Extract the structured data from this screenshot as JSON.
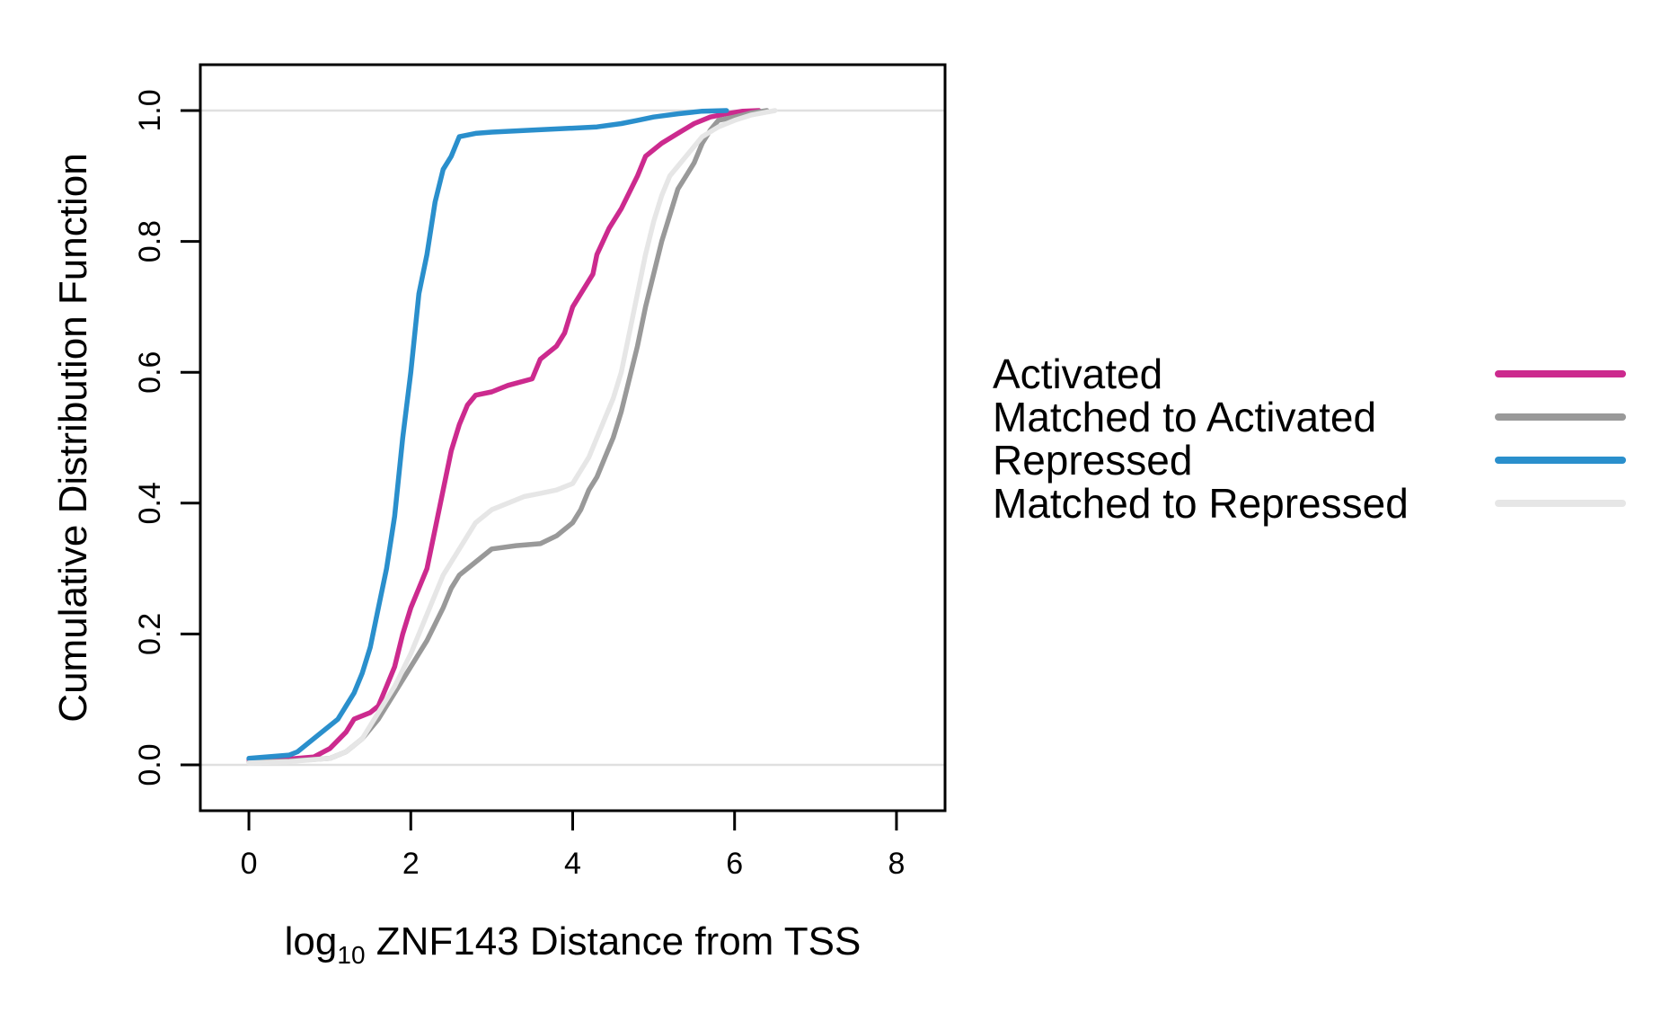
{
  "chart_data": {
    "type": "line",
    "title": "",
    "xlabel": {
      "prefix": "log",
      "subscript": "10",
      "rest": " ZNF143 Distance from TSS"
    },
    "ylabel": "Cumulative Distribution Function",
    "xlim": [
      -0.6,
      8.6
    ],
    "ylim": [
      -0.07,
      1.07
    ],
    "x_ticks": [
      0,
      2,
      4,
      6,
      8
    ],
    "y_ticks": [
      0.0,
      0.2,
      0.4,
      0.6,
      0.8,
      1.0
    ],
    "x_tick_labels": [
      "0",
      "2",
      "4",
      "6",
      "8"
    ],
    "y_tick_labels": [
      "0.0",
      "0.2",
      "0.4",
      "0.6",
      "0.8",
      "1.0"
    ],
    "reference_lines_y": [
      0,
      1
    ],
    "grid": false,
    "legend_position": "right",
    "series": [
      {
        "name": "Activated",
        "color": "#CC2A8E",
        "points": [
          [
            0,
            0.008
          ],
          [
            0.5,
            0.009
          ],
          [
            0.8,
            0.012
          ],
          [
            1.0,
            0.025
          ],
          [
            1.2,
            0.05
          ],
          [
            1.3,
            0.07
          ],
          [
            1.5,
            0.08
          ],
          [
            1.6,
            0.09
          ],
          [
            1.7,
            0.12
          ],
          [
            1.8,
            0.15
          ],
          [
            1.9,
            0.2
          ],
          [
            2.0,
            0.24
          ],
          [
            2.1,
            0.27
          ],
          [
            2.2,
            0.3
          ],
          [
            2.3,
            0.36
          ],
          [
            2.4,
            0.42
          ],
          [
            2.5,
            0.48
          ],
          [
            2.6,
            0.52
          ],
          [
            2.7,
            0.55
          ],
          [
            2.8,
            0.565
          ],
          [
            3.0,
            0.57
          ],
          [
            3.2,
            0.58
          ],
          [
            3.5,
            0.59
          ],
          [
            3.6,
            0.62
          ],
          [
            3.8,
            0.64
          ],
          [
            3.9,
            0.66
          ],
          [
            4.0,
            0.7
          ],
          [
            4.1,
            0.72
          ],
          [
            4.25,
            0.75
          ],
          [
            4.3,
            0.78
          ],
          [
            4.45,
            0.82
          ],
          [
            4.6,
            0.85
          ],
          [
            4.8,
            0.9
          ],
          [
            4.9,
            0.93
          ],
          [
            5.1,
            0.95
          ],
          [
            5.3,
            0.965
          ],
          [
            5.5,
            0.98
          ],
          [
            5.7,
            0.99
          ],
          [
            5.9,
            0.995
          ],
          [
            6.1,
            0.999
          ],
          [
            6.3,
            1.0
          ]
        ]
      },
      {
        "name": "Matched to Activated",
        "color": "#999999",
        "points": [
          [
            0,
            0.004
          ],
          [
            0.5,
            0.006
          ],
          [
            1.0,
            0.01
          ],
          [
            1.2,
            0.02
          ],
          [
            1.4,
            0.04
          ],
          [
            1.6,
            0.07
          ],
          [
            1.8,
            0.11
          ],
          [
            2.0,
            0.15
          ],
          [
            2.2,
            0.19
          ],
          [
            2.4,
            0.24
          ],
          [
            2.5,
            0.27
          ],
          [
            2.6,
            0.29
          ],
          [
            2.8,
            0.31
          ],
          [
            3.0,
            0.33
          ],
          [
            3.3,
            0.335
          ],
          [
            3.6,
            0.338
          ],
          [
            3.8,
            0.35
          ],
          [
            4.0,
            0.37
          ],
          [
            4.1,
            0.39
          ],
          [
            4.2,
            0.42
          ],
          [
            4.3,
            0.44
          ],
          [
            4.4,
            0.47
          ],
          [
            4.5,
            0.5
          ],
          [
            4.6,
            0.54
          ],
          [
            4.7,
            0.59
          ],
          [
            4.8,
            0.64
          ],
          [
            4.9,
            0.7
          ],
          [
            5.0,
            0.75
          ],
          [
            5.1,
            0.8
          ],
          [
            5.2,
            0.84
          ],
          [
            5.3,
            0.88
          ],
          [
            5.4,
            0.9
          ],
          [
            5.5,
            0.92
          ],
          [
            5.6,
            0.95
          ],
          [
            5.7,
            0.97
          ],
          [
            5.8,
            0.985
          ],
          [
            6.0,
            0.99
          ],
          [
            6.2,
            0.996
          ],
          [
            6.4,
            1.0
          ]
        ]
      },
      {
        "name": "Repressed",
        "color": "#2A8FCC",
        "points": [
          [
            0,
            0.01
          ],
          [
            0.5,
            0.015
          ],
          [
            0.6,
            0.02
          ],
          [
            0.8,
            0.04
          ],
          [
            1.0,
            0.06
          ],
          [
            1.1,
            0.07
          ],
          [
            1.2,
            0.09
          ],
          [
            1.3,
            0.11
          ],
          [
            1.4,
            0.14
          ],
          [
            1.5,
            0.18
          ],
          [
            1.6,
            0.24
          ],
          [
            1.7,
            0.3
          ],
          [
            1.8,
            0.38
          ],
          [
            1.9,
            0.5
          ],
          [
            2.0,
            0.6
          ],
          [
            2.05,
            0.66
          ],
          [
            2.1,
            0.72
          ],
          [
            2.2,
            0.78
          ],
          [
            2.3,
            0.86
          ],
          [
            2.4,
            0.91
          ],
          [
            2.5,
            0.93
          ],
          [
            2.6,
            0.96
          ],
          [
            2.8,
            0.965
          ],
          [
            3.0,
            0.967
          ],
          [
            3.5,
            0.97
          ],
          [
            4.0,
            0.973
          ],
          [
            4.3,
            0.975
          ],
          [
            4.6,
            0.98
          ],
          [
            4.8,
            0.985
          ],
          [
            5.0,
            0.99
          ],
          [
            5.3,
            0.995
          ],
          [
            5.6,
            0.999
          ],
          [
            5.9,
            1.0
          ]
        ]
      },
      {
        "name": "Matched to Repressed",
        "color": "#E6E6E6",
        "points": [
          [
            0,
            0.003
          ],
          [
            0.5,
            0.005
          ],
          [
            1.0,
            0.01
          ],
          [
            1.2,
            0.02
          ],
          [
            1.4,
            0.04
          ],
          [
            1.6,
            0.08
          ],
          [
            1.8,
            0.12
          ],
          [
            2.0,
            0.17
          ],
          [
            2.2,
            0.23
          ],
          [
            2.4,
            0.29
          ],
          [
            2.6,
            0.33
          ],
          [
            2.8,
            0.37
          ],
          [
            3.0,
            0.39
          ],
          [
            3.2,
            0.4
          ],
          [
            3.4,
            0.41
          ],
          [
            3.6,
            0.415
          ],
          [
            3.8,
            0.42
          ],
          [
            4.0,
            0.43
          ],
          [
            4.1,
            0.45
          ],
          [
            4.2,
            0.47
          ],
          [
            4.3,
            0.5
          ],
          [
            4.4,
            0.53
          ],
          [
            4.5,
            0.56
          ],
          [
            4.6,
            0.6
          ],
          [
            4.7,
            0.66
          ],
          [
            4.8,
            0.72
          ],
          [
            4.9,
            0.78
          ],
          [
            5.0,
            0.83
          ],
          [
            5.1,
            0.87
          ],
          [
            5.2,
            0.9
          ],
          [
            5.4,
            0.93
          ],
          [
            5.6,
            0.96
          ],
          [
            5.8,
            0.975
          ],
          [
            6.0,
            0.985
          ],
          [
            6.2,
            0.993
          ],
          [
            6.5,
            1.0
          ]
        ]
      }
    ]
  }
}
